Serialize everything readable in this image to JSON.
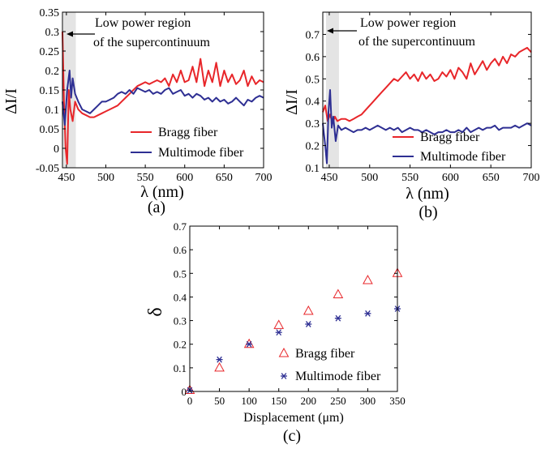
{
  "figure": {
    "panels": [
      {
        "id": "a",
        "label": "(a)",
        "annotation": "Low power region\nof the supercontinuum",
        "highlight_band": [
          446,
          462
        ],
        "colors": {
          "bragg": "#e8262a",
          "multimode": "#2e2f93",
          "band": "#e4e4e4"
        }
      },
      {
        "id": "b",
        "label": "(b)",
        "annotation": "Low power region\nof the supercontinuum",
        "highlight_band": [
          446,
          462
        ],
        "colors": {
          "bragg": "#e8262a",
          "multimode": "#2e2f93",
          "band": "#e4e4e4"
        }
      },
      {
        "id": "c",
        "label": "(c)",
        "colors": {
          "bragg": "#e8262a",
          "multimode": "#2e2f93"
        }
      }
    ]
  },
  "chart_data": [
    {
      "type": "line",
      "panel": "a",
      "xlabel": "λ (nm)",
      "ylabel": "ΔI/I",
      "xlim": [
        445,
        700
      ],
      "ylim": [
        -0.05,
        0.35
      ],
      "xticks": [
        450,
        500,
        550,
        600,
        650,
        700
      ],
      "yticks": [
        -0.05,
        0,
        0.05,
        0.1,
        0.15,
        0.2,
        0.25,
        0.3,
        0.35
      ],
      "legend_position": "bottom-right",
      "series": [
        {
          "name": "Bragg fiber",
          "x": [
            445,
            447,
            449,
            451,
            453,
            455,
            458,
            461,
            465,
            470,
            475,
            480,
            485,
            490,
            495,
            500,
            505,
            510,
            515,
            520,
            525,
            530,
            535,
            540,
            545,
            550,
            555,
            560,
            565,
            570,
            575,
            580,
            585,
            590,
            595,
            600,
            605,
            610,
            615,
            620,
            625,
            630,
            635,
            640,
            645,
            650,
            655,
            660,
            665,
            670,
            675,
            680,
            685,
            690,
            695,
            700
          ],
          "y": [
            0.3,
            0.12,
            0.0,
            -0.04,
            0.15,
            0.1,
            0.07,
            0.12,
            0.1,
            0.09,
            0.085,
            0.08,
            0.08,
            0.085,
            0.09,
            0.095,
            0.1,
            0.105,
            0.11,
            0.12,
            0.13,
            0.14,
            0.15,
            0.16,
            0.165,
            0.17,
            0.165,
            0.17,
            0.175,
            0.17,
            0.18,
            0.16,
            0.19,
            0.17,
            0.2,
            0.17,
            0.175,
            0.21,
            0.17,
            0.23,
            0.16,
            0.2,
            0.17,
            0.22,
            0.16,
            0.2,
            0.17,
            0.19,
            0.165,
            0.175,
            0.2,
            0.16,
            0.185,
            0.165,
            0.175,
            0.17
          ]
        },
        {
          "name": "Multimode fiber",
          "x": [
            445,
            448,
            451,
            454,
            456,
            458,
            461,
            465,
            470,
            475,
            480,
            485,
            490,
            495,
            500,
            505,
            510,
            515,
            520,
            525,
            530,
            535,
            540,
            545,
            550,
            555,
            560,
            565,
            570,
            575,
            580,
            585,
            590,
            595,
            600,
            605,
            610,
            615,
            620,
            625,
            630,
            635,
            640,
            645,
            650,
            655,
            660,
            665,
            670,
            675,
            680,
            685,
            690,
            695,
            700
          ],
          "y": [
            0.12,
            0.06,
            0.15,
            0.2,
            0.13,
            0.18,
            0.14,
            0.12,
            0.1,
            0.095,
            0.09,
            0.1,
            0.11,
            0.12,
            0.12,
            0.125,
            0.13,
            0.14,
            0.145,
            0.14,
            0.15,
            0.14,
            0.155,
            0.15,
            0.145,
            0.15,
            0.14,
            0.145,
            0.14,
            0.15,
            0.155,
            0.14,
            0.145,
            0.15,
            0.135,
            0.14,
            0.13,
            0.14,
            0.135,
            0.125,
            0.13,
            0.12,
            0.13,
            0.12,
            0.125,
            0.115,
            0.12,
            0.13,
            0.12,
            0.11,
            0.125,
            0.12,
            0.13,
            0.135,
            0.13
          ]
        }
      ]
    },
    {
      "type": "line",
      "panel": "b",
      "xlabel": "λ (nm)",
      "ylabel": "ΔI/I",
      "xlim": [
        442,
        700
      ],
      "ylim": [
        0.1,
        0.8
      ],
      "xticks": [
        450,
        500,
        550,
        600,
        650,
        700
      ],
      "yticks": [
        0.1,
        0.2,
        0.3,
        0.4,
        0.5,
        0.6,
        0.7
      ],
      "legend_position": "bottom-right",
      "series": [
        {
          "name": "Bragg fiber",
          "x": [
            442,
            445,
            448,
            451,
            454,
            457,
            460,
            465,
            470,
            475,
            480,
            485,
            490,
            495,
            500,
            505,
            510,
            515,
            520,
            525,
            530,
            535,
            540,
            545,
            550,
            555,
            560,
            565,
            570,
            575,
            580,
            585,
            590,
            595,
            600,
            605,
            610,
            615,
            620,
            625,
            630,
            635,
            640,
            645,
            650,
            655,
            660,
            665,
            670,
            675,
            680,
            685,
            690,
            695,
            700
          ],
          "y": [
            0.35,
            0.38,
            0.31,
            0.34,
            0.3,
            0.33,
            0.31,
            0.32,
            0.32,
            0.31,
            0.32,
            0.33,
            0.34,
            0.36,
            0.38,
            0.4,
            0.42,
            0.44,
            0.46,
            0.48,
            0.5,
            0.49,
            0.51,
            0.53,
            0.5,
            0.52,
            0.49,
            0.53,
            0.5,
            0.52,
            0.49,
            0.5,
            0.53,
            0.51,
            0.54,
            0.5,
            0.55,
            0.53,
            0.5,
            0.57,
            0.52,
            0.55,
            0.58,
            0.54,
            0.57,
            0.59,
            0.56,
            0.6,
            0.57,
            0.61,
            0.6,
            0.62,
            0.63,
            0.64,
            0.62
          ]
        },
        {
          "name": "Multimode fiber",
          "x": [
            442,
            445,
            447,
            449,
            451,
            453,
            455,
            458,
            461,
            465,
            470,
            475,
            480,
            485,
            490,
            495,
            500,
            505,
            510,
            515,
            520,
            525,
            530,
            535,
            540,
            545,
            550,
            555,
            560,
            565,
            570,
            575,
            580,
            585,
            590,
            595,
            600,
            605,
            610,
            615,
            620,
            625,
            630,
            635,
            640,
            645,
            650,
            655,
            660,
            665,
            670,
            675,
            680,
            685,
            690,
            695,
            700
          ],
          "y": [
            0.3,
            0.2,
            0.12,
            0.35,
            0.45,
            0.28,
            0.33,
            0.22,
            0.29,
            0.27,
            0.28,
            0.27,
            0.26,
            0.27,
            0.27,
            0.28,
            0.27,
            0.28,
            0.29,
            0.28,
            0.27,
            0.28,
            0.27,
            0.28,
            0.26,
            0.27,
            0.28,
            0.27,
            0.27,
            0.26,
            0.27,
            0.26,
            0.25,
            0.26,
            0.26,
            0.27,
            0.26,
            0.26,
            0.27,
            0.26,
            0.28,
            0.26,
            0.27,
            0.28,
            0.27,
            0.28,
            0.28,
            0.29,
            0.27,
            0.28,
            0.28,
            0.28,
            0.29,
            0.28,
            0.29,
            0.3,
            0.29
          ]
        }
      ]
    },
    {
      "type": "scatter",
      "panel": "c",
      "xlabel": "Displacement (μm)",
      "ylabel": "δ",
      "xlim": [
        0,
        350
      ],
      "ylim": [
        0,
        0.7
      ],
      "xticks": [
        0,
        50,
        100,
        150,
        200,
        250,
        300,
        350
      ],
      "yticks": [
        0,
        0.1,
        0.2,
        0.3,
        0.4,
        0.5,
        0.6,
        0.7
      ],
      "legend_position": "bottom-right",
      "series": [
        {
          "name": "Bragg fiber",
          "marker": "triangle",
          "x": [
            0,
            50,
            100,
            150,
            200,
            250,
            300,
            350
          ],
          "y": [
            0.005,
            0.1,
            0.2,
            0.28,
            0.34,
            0.41,
            0.47,
            0.5
          ]
        },
        {
          "name": "Multimode fiber",
          "marker": "asterisk",
          "x": [
            0,
            50,
            100,
            150,
            200,
            250,
            300,
            350
          ],
          "y": [
            0.005,
            0.135,
            0.2,
            0.25,
            0.285,
            0.31,
            0.33,
            0.35
          ]
        }
      ]
    }
  ]
}
